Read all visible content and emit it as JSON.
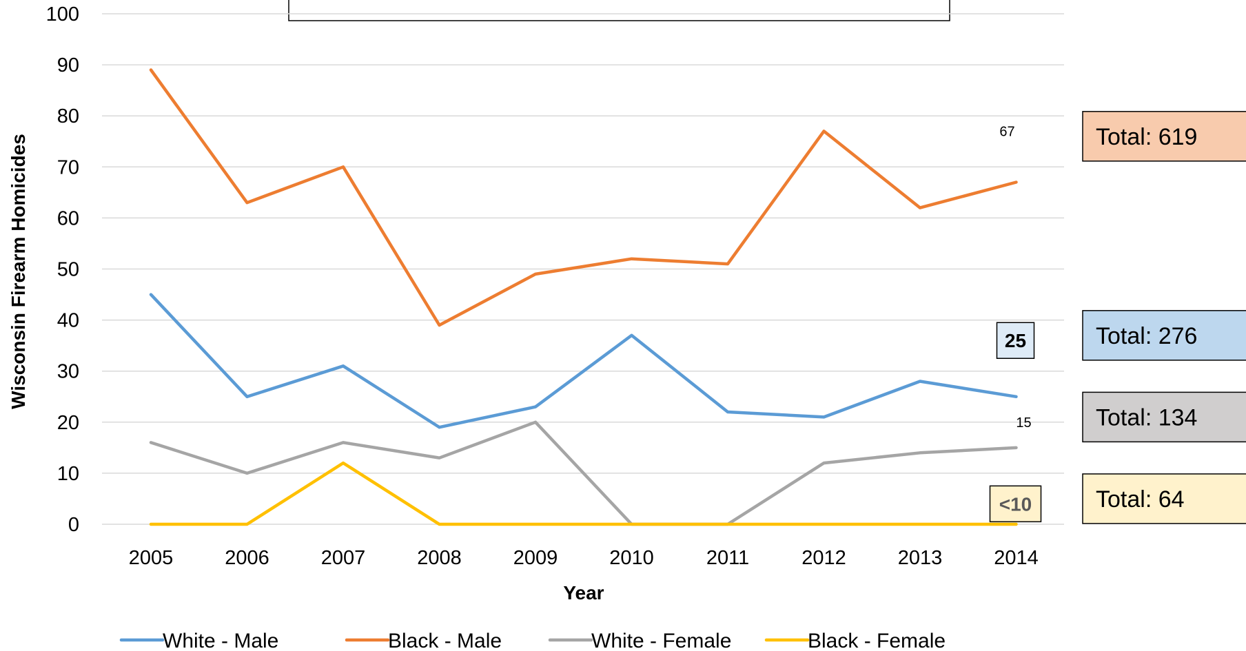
{
  "chart_data": {
    "type": "line",
    "title": "",
    "xlabel": "Year",
    "ylabel": "Wisconsin Firearm Homicides",
    "ylim": [
      0,
      100
    ],
    "yticks": [
      "0",
      "10",
      "20",
      "30",
      "40",
      "50",
      "60",
      "70",
      "80",
      "90",
      "100"
    ],
    "categories": [
      "2005",
      "2006",
      "2007",
      "2008",
      "2009",
      "2010",
      "2011",
      "2012",
      "2013",
      "2014"
    ],
    "grid": true,
    "legend_position": "bottom",
    "series": [
      {
        "name": "White - Male",
        "color": "#5B9BD5",
        "values": [
          45,
          25,
          31,
          19,
          23,
          37,
          22,
          21,
          28,
          25
        ]
      },
      {
        "name": "Black - Male",
        "color": "#ED7D31",
        "values": [
          89,
          63,
          70,
          39,
          49,
          52,
          51,
          77,
          62,
          67
        ]
      },
      {
        "name": "White - Female",
        "color": "#A5A5A5",
        "values": [
          16,
          10,
          16,
          13,
          20,
          0,
          0,
          12,
          14,
          15
        ]
      },
      {
        "name": "Black - Female",
        "color": "#FFC000",
        "values": [
          0,
          0,
          12,
          0,
          0,
          0,
          0,
          0,
          0,
          0
        ]
      }
    ],
    "annotations": [
      {
        "text": "67",
        "series": "Black - Male",
        "x": "2014",
        "y": 77,
        "boxed": false
      },
      {
        "text": "25",
        "series": "White - Male",
        "x": "2014",
        "y": 36,
        "boxed": true,
        "bg": "#DEEBF7",
        "color": "#000000"
      },
      {
        "text": "15",
        "series": "White - Female",
        "x": "2014",
        "y": 20,
        "boxed": false
      },
      {
        "text": "<10",
        "series": "Black - Female",
        "x": "2014",
        "y": 4,
        "boxed": true,
        "bg": "#FFF2CC",
        "color": "#595959"
      }
    ],
    "totals": [
      {
        "text": "Total: 619",
        "bg": "#F8CBAD",
        "y": 76
      },
      {
        "text": "Total: 276",
        "bg": "#BDD7EE",
        "y": 37
      },
      {
        "text": "Total: 134",
        "bg": "#D0CECE",
        "y": 21
      },
      {
        "text": "Total: 64",
        "bg": "#FFF2CC",
        "y": 5
      }
    ]
  }
}
